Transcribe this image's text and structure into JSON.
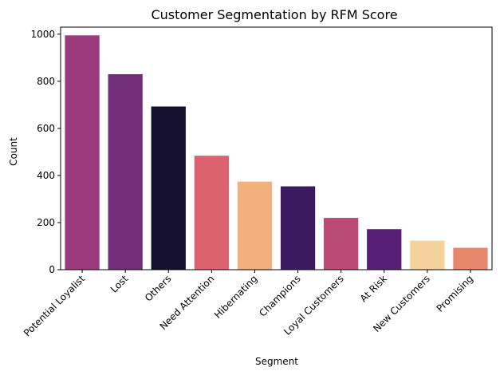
{
  "chart_data": {
    "type": "bar",
    "title": "Customer Segmentation by RFM Score",
    "xlabel": "Segment",
    "ylabel": "Count",
    "ylim": [
      0,
      1030
    ],
    "yticks": [
      0,
      200,
      400,
      600,
      800,
      1000
    ],
    "grid": false,
    "categories": [
      "Potential Loyalist",
      "Lost",
      "Others",
      "Need Attention",
      "Hibernating",
      "Champions",
      "Loyal Customers",
      "At Risk",
      "New Customers",
      "Promising"
    ],
    "values": [
      995,
      830,
      693,
      484,
      374,
      354,
      220,
      172,
      123,
      93
    ],
    "colors": [
      "#9b3a7c",
      "#722f79",
      "#151030",
      "#dc6270",
      "#f2b07f",
      "#3a1b62",
      "#ba4a76",
      "#581f76",
      "#f5d29c",
      "#e8876b"
    ]
  }
}
